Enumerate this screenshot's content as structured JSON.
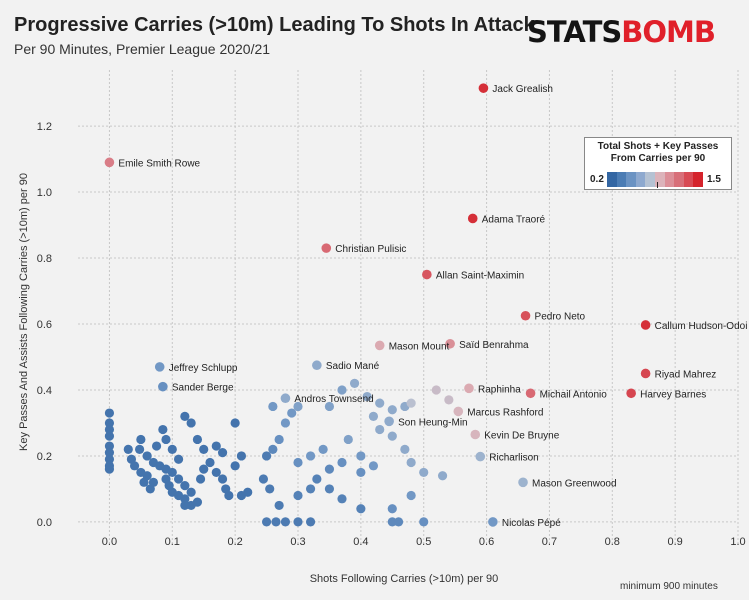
{
  "title": "Progressive Carries (>10m) Leading To Shots In Attack",
  "subtitle": "Per 90 Minutes, Premier League 2020/21",
  "logo": {
    "part1": "STATS",
    "part2": "BOMB"
  },
  "footnote": "minimum 900 minutes",
  "legend": {
    "title_line1": "Total Shots + Key Passes",
    "title_line2": "From Carries per 90",
    "min_label": "0.2",
    "max_label": "1.5",
    "colors": [
      "#3366a3",
      "#4b7cb4",
      "#6b93c3",
      "#8ea9cf",
      "#b5c2d3",
      "#dcb3ba",
      "#dc8f98",
      "#d86f79",
      "#d84a54",
      "#d5232c"
    ]
  },
  "chart_data": {
    "type": "scatter",
    "title": "Progressive Carries (>10m) Leading To Shots In Attack",
    "subtitle": "Per 90 Minutes, Premier League 2020/21",
    "xlabel": "Shots Following Carries (>10m) per 90",
    "ylabel": "Key Passes And Assists Following Carries (>10m) per 90",
    "xlim": [
      -0.05,
      1.0
    ],
    "ylim": [
      -0.07,
      1.37
    ],
    "xticks": [
      "0.0",
      "0.1",
      "0.2",
      "0.3",
      "0.4",
      "0.5",
      "0.6",
      "0.7",
      "0.8",
      "0.9",
      "1.0"
    ],
    "yticks": [
      "0.0",
      "0.2",
      "0.4",
      "0.6",
      "0.8",
      "1.0",
      "1.2"
    ],
    "grid": true,
    "color_scale": {
      "min": 0.2,
      "max": 1.5
    },
    "labeled_points": [
      {
        "name": "Jack Grealish",
        "x": 0.595,
        "y": 1.315,
        "c": 1.45
      },
      {
        "name": "Emile Smith Rowe",
        "x": 0.0,
        "y": 1.09,
        "c": 1.12
      },
      {
        "name": "Adama Traoré",
        "x": 0.578,
        "y": 0.92,
        "c": 1.45
      },
      {
        "name": "Christian Pulisic",
        "x": 0.345,
        "y": 0.83,
        "c": 1.2
      },
      {
        "name": "Allan Saint-Maximin",
        "x": 0.505,
        "y": 0.75,
        "c": 1.28
      },
      {
        "name": "Pedro Neto",
        "x": 0.662,
        "y": 0.625,
        "c": 1.3
      },
      {
        "name": "Callum Hudson-Odoi",
        "x": 0.853,
        "y": 0.597,
        "c": 1.45
      },
      {
        "name": "Saïd Benrahma",
        "x": 0.542,
        "y": 0.54,
        "c": 1.05
      },
      {
        "name": "Mason Mount",
        "x": 0.43,
        "y": 0.535,
        "c": 0.95
      },
      {
        "name": "Sadio Mané",
        "x": 0.33,
        "y": 0.475,
        "c": 0.65
      },
      {
        "name": "Jeffrey Schlupp",
        "x": 0.08,
        "y": 0.47,
        "c": 0.55
      },
      {
        "name": "Riyad Mahrez",
        "x": 0.853,
        "y": 0.45,
        "c": 1.35
      },
      {
        "name": "Raphinha",
        "x": 0.572,
        "y": 0.405,
        "c": 0.95
      },
      {
        "name": "Sander Berge",
        "x": 0.085,
        "y": 0.41,
        "c": 0.5
      },
      {
        "name": "Michail Antonio",
        "x": 0.67,
        "y": 0.39,
        "c": 1.2
      },
      {
        "name": "Harvey Barnes",
        "x": 0.83,
        "y": 0.39,
        "c": 1.35
      },
      {
        "name": "Andros Townsend",
        "x": 0.28,
        "y": 0.375,
        "c": 0.65
      },
      {
        "name": "Marcus Rashford",
        "x": 0.555,
        "y": 0.335,
        "c": 0.9
      },
      {
        "name": "Son Heung-Min",
        "x": 0.445,
        "y": 0.305,
        "c": 0.65
      },
      {
        "name": "Kevin De Bruyne",
        "x": 0.582,
        "y": 0.265,
        "c": 0.9
      },
      {
        "name": "Richarlison",
        "x": 0.59,
        "y": 0.198,
        "c": 0.7
      },
      {
        "name": "Mason Greenwood",
        "x": 0.658,
        "y": 0.12,
        "c": 0.7
      },
      {
        "name": "Nicolas Pépé",
        "x": 0.61,
        "y": 0.0,
        "c": 0.55
      }
    ],
    "other_points": [
      [
        0.0,
        0.33,
        0.3
      ],
      [
        0.0,
        0.3,
        0.3
      ],
      [
        0.0,
        0.28,
        0.3
      ],
      [
        0.0,
        0.26,
        0.3
      ],
      [
        0.0,
        0.23,
        0.3
      ],
      [
        0.0,
        0.21,
        0.3
      ],
      [
        0.0,
        0.19,
        0.3
      ],
      [
        0.0,
        0.17,
        0.3
      ],
      [
        0.0,
        0.16,
        0.3
      ],
      [
        0.03,
        0.22,
        0.3
      ],
      [
        0.035,
        0.19,
        0.3
      ],
      [
        0.04,
        0.17,
        0.3
      ],
      [
        0.05,
        0.15,
        0.3
      ],
      [
        0.055,
        0.12,
        0.3
      ],
      [
        0.06,
        0.14,
        0.3
      ],
      [
        0.065,
        0.1,
        0.3
      ],
      [
        0.07,
        0.12,
        0.3
      ],
      [
        0.05,
        0.25,
        0.3
      ],
      [
        0.048,
        0.22,
        0.3
      ],
      [
        0.06,
        0.2,
        0.3
      ],
      [
        0.07,
        0.18,
        0.3
      ],
      [
        0.08,
        0.17,
        0.3
      ],
      [
        0.09,
        0.16,
        0.3
      ],
      [
        0.075,
        0.23,
        0.3
      ],
      [
        0.085,
        0.28,
        0.3
      ],
      [
        0.09,
        0.25,
        0.3
      ],
      [
        0.1,
        0.22,
        0.3
      ],
      [
        0.11,
        0.19,
        0.3
      ],
      [
        0.1,
        0.15,
        0.3
      ],
      [
        0.11,
        0.13,
        0.3
      ],
      [
        0.12,
        0.11,
        0.3
      ],
      [
        0.13,
        0.09,
        0.3
      ],
      [
        0.12,
        0.07,
        0.3
      ],
      [
        0.13,
        0.05,
        0.3
      ],
      [
        0.14,
        0.06,
        0.3
      ],
      [
        0.12,
        0.05,
        0.3
      ],
      [
        0.145,
        0.13,
        0.3
      ],
      [
        0.15,
        0.16,
        0.3
      ],
      [
        0.16,
        0.18,
        0.3
      ],
      [
        0.17,
        0.15,
        0.3
      ],
      [
        0.18,
        0.13,
        0.3
      ],
      [
        0.185,
        0.1,
        0.3
      ],
      [
        0.19,
        0.08,
        0.3
      ],
      [
        0.2,
        0.17,
        0.3
      ],
      [
        0.21,
        0.2,
        0.3
      ],
      [
        0.22,
        0.09,
        0.3
      ],
      [
        0.21,
        0.08,
        0.3
      ],
      [
        0.12,
        0.32,
        0.3
      ],
      [
        0.13,
        0.3,
        0.3
      ],
      [
        0.14,
        0.25,
        0.3
      ],
      [
        0.15,
        0.22,
        0.3
      ],
      [
        0.2,
        0.3,
        0.3
      ],
      [
        0.18,
        0.21,
        0.3
      ],
      [
        0.17,
        0.23,
        0.3
      ],
      [
        0.1,
        0.09,
        0.3
      ],
      [
        0.11,
        0.08,
        0.3
      ],
      [
        0.09,
        0.13,
        0.3
      ],
      [
        0.095,
        0.11,
        0.3
      ],
      [
        0.25,
        0.0,
        0.35
      ],
      [
        0.265,
        0.0,
        0.35
      ],
      [
        0.28,
        0.0,
        0.35
      ],
      [
        0.3,
        0.0,
        0.35
      ],
      [
        0.32,
        0.0,
        0.35
      ],
      [
        0.27,
        0.05,
        0.35
      ],
      [
        0.255,
        0.1,
        0.35
      ],
      [
        0.245,
        0.13,
        0.35
      ],
      [
        0.25,
        0.2,
        0.35
      ],
      [
        0.26,
        0.22,
        0.45
      ],
      [
        0.27,
        0.25,
        0.5
      ],
      [
        0.3,
        0.08,
        0.4
      ],
      [
        0.32,
        0.1,
        0.4
      ],
      [
        0.33,
        0.13,
        0.4
      ],
      [
        0.35,
        0.1,
        0.4
      ],
      [
        0.37,
        0.07,
        0.4
      ],
      [
        0.4,
        0.04,
        0.4
      ],
      [
        0.35,
        0.16,
        0.45
      ],
      [
        0.37,
        0.18,
        0.5
      ],
      [
        0.3,
        0.18,
        0.5
      ],
      [
        0.32,
        0.2,
        0.55
      ],
      [
        0.34,
        0.22,
        0.55
      ],
      [
        0.38,
        0.25,
        0.6
      ],
      [
        0.4,
        0.2,
        0.55
      ],
      [
        0.42,
        0.17,
        0.55
      ],
      [
        0.4,
        0.15,
        0.5
      ],
      [
        0.45,
        0.0,
        0.45
      ],
      [
        0.46,
        0.0,
        0.45
      ],
      [
        0.5,
        0.0,
        0.5
      ],
      [
        0.48,
        0.08,
        0.55
      ],
      [
        0.45,
        0.04,
        0.5
      ],
      [
        0.28,
        0.3,
        0.55
      ],
      [
        0.29,
        0.33,
        0.55
      ],
      [
        0.3,
        0.35,
        0.6
      ],
      [
        0.35,
        0.35,
        0.6
      ],
      [
        0.37,
        0.4,
        0.6
      ],
      [
        0.39,
        0.42,
        0.65
      ],
      [
        0.41,
        0.38,
        0.65
      ],
      [
        0.43,
        0.36,
        0.65
      ],
      [
        0.45,
        0.34,
        0.65
      ],
      [
        0.47,
        0.35,
        0.65
      ],
      [
        0.43,
        0.28,
        0.65
      ],
      [
        0.45,
        0.26,
        0.65
      ],
      [
        0.47,
        0.22,
        0.65
      ],
      [
        0.48,
        0.18,
        0.65
      ],
      [
        0.5,
        0.15,
        0.65
      ],
      [
        0.53,
        0.14,
        0.65
      ],
      [
        0.42,
        0.32,
        0.65
      ],
      [
        0.48,
        0.36,
        0.8
      ],
      [
        0.52,
        0.4,
        0.85
      ],
      [
        0.54,
        0.37,
        0.85
      ],
      [
        0.26,
        0.35,
        0.55
      ]
    ]
  }
}
